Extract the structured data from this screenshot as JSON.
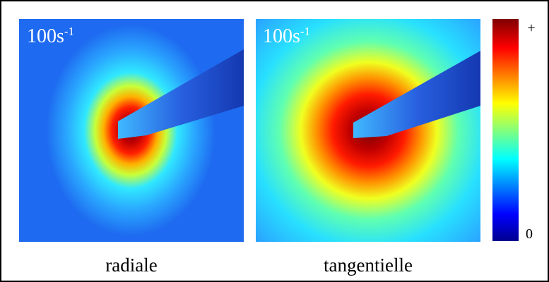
{
  "panels": [
    {
      "label": "100s",
      "label_exponent": "-1",
      "caption": "radiale"
    },
    {
      "label": "100s",
      "label_exponent": "-1",
      "caption": "tangentielle"
    }
  ],
  "colorbar": {
    "top_label": "+",
    "bottom_label": "0"
  }
}
